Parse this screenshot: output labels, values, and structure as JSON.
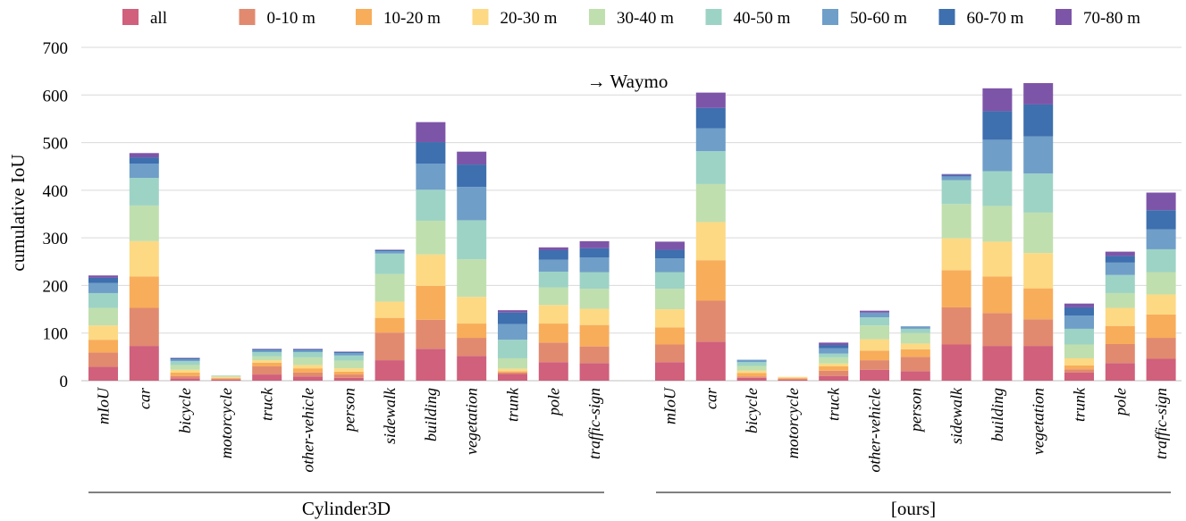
{
  "chart_data": {
    "type": "bar",
    "stacked": true,
    "title": "",
    "annotation": "→ Waymo",
    "ylabel": "cumulative IoU",
    "ylim": [
      0,
      700
    ],
    "yticks": [
      0,
      100,
      200,
      300,
      400,
      500,
      600,
      700
    ],
    "grid": true,
    "legend_position": "top",
    "categories": [
      "mIoU",
      "car",
      "bicycle",
      "motorcycle",
      "truck",
      "other-vehicle",
      "person",
      "sidewalk",
      "building",
      "vegetation",
      "trunk",
      "pole",
      "traffic-sign"
    ],
    "series": [
      {
        "name": "all",
        "color": "#d0607c"
      },
      {
        "name": "0-10 m",
        "color": "#e18a6f"
      },
      {
        "name": "10-20 m",
        "color": "#f8ad5a"
      },
      {
        "name": "20-30 m",
        "color": "#fdd984"
      },
      {
        "name": "30-40 m",
        "color": "#c0dfae"
      },
      {
        "name": "40-50 m",
        "color": "#9dd3c5"
      },
      {
        "name": "50-60 m",
        "color": "#6f9ec8"
      },
      {
        "name": "60-70 m",
        "color": "#3e6fae"
      },
      {
        "name": "70-80 m",
        "color": "#7d55a8"
      }
    ],
    "groups": [
      {
        "label": "Cylinder3D",
        "values": [
          [
            29,
            30,
            27,
            30,
            37,
            31,
            21,
            11,
            5
          ],
          [
            73,
            80,
            66,
            74,
            75,
            58,
            30,
            13,
            9
          ],
          [
            5,
            5,
            7,
            6,
            10,
            8,
            4,
            2,
            1
          ],
          [
            2,
            2,
            2,
            2,
            2,
            1,
            0,
            0,
            0
          ],
          [
            13,
            17,
            8,
            5,
            8,
            9,
            4,
            2,
            1
          ],
          [
            9,
            8,
            9,
            7,
            16,
            11,
            4,
            2,
            1
          ],
          [
            6,
            7,
            6,
            7,
            16,
            11,
            5,
            2,
            1
          ],
          [
            43,
            58,
            31,
            34,
            58,
            43,
            5,
            2,
            1
          ],
          [
            67,
            61,
            71,
            66,
            71,
            65,
            55,
            45,
            42
          ],
          [
            52,
            38,
            30,
            56,
            79,
            82,
            70,
            47,
            27
          ],
          [
            14,
            3,
            3,
            5,
            22,
            39,
            33,
            24,
            5
          ],
          [
            39,
            41,
            40,
            39,
            37,
            33,
            25,
            20,
            6
          ],
          [
            37,
            35,
            45,
            34,
            42,
            35,
            31,
            19,
            15
          ]
        ]
      },
      {
        "label": "[ours]",
        "values": [
          [
            39,
            37,
            36,
            38,
            43,
            35,
            29,
            18,
            17
          ],
          [
            82,
            86,
            85,
            80,
            80,
            69,
            48,
            43,
            32
          ],
          [
            6,
            3,
            7,
            5,
            10,
            8,
            5,
            0,
            0
          ],
          [
            2,
            2,
            2,
            2,
            0,
            0,
            0,
            0,
            0
          ],
          [
            10,
            11,
            9,
            6,
            13,
            8,
            11,
            7,
            5
          ],
          [
            23,
            20,
            20,
            24,
            29,
            17,
            10,
            0,
            4
          ],
          [
            20,
            30,
            16,
            12,
            22,
            9,
            4,
            1,
            0
          ],
          [
            76,
            78,
            78,
            67,
            72,
            50,
            8,
            3,
            2
          ],
          [
            73,
            69,
            77,
            73,
            75,
            73,
            66,
            60,
            48
          ],
          [
            73,
            56,
            65,
            74,
            85,
            82,
            78,
            67,
            45
          ],
          [
            17,
            7,
            8,
            15,
            29,
            33,
            28,
            17,
            8
          ],
          [
            37,
            40,
            38,
            38,
            31,
            38,
            26,
            14,
            9
          ],
          [
            46,
            44,
            49,
            42,
            47,
            48,
            42,
            40,
            37
          ]
        ]
      }
    ]
  }
}
